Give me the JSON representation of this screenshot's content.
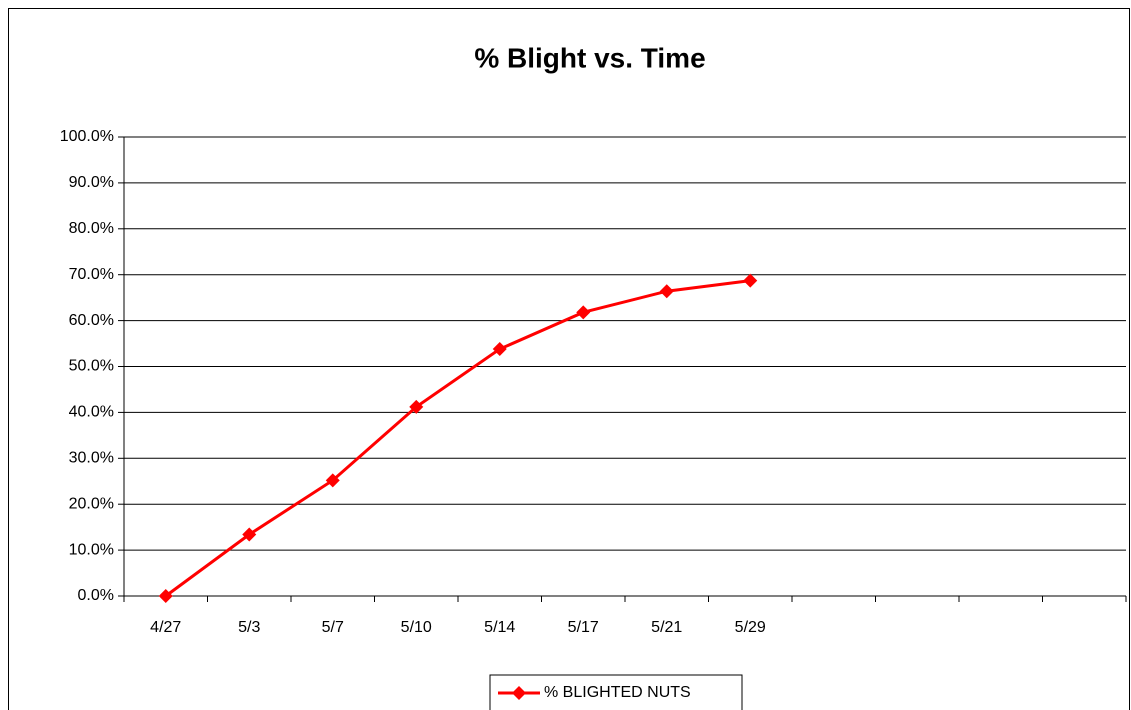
{
  "chart_data": {
    "type": "line",
    "title": "% Blight vs. Time",
    "categories": [
      "4/27",
      "5/3",
      "5/7",
      "5/10",
      "5/14",
      "5/17",
      "5/21",
      "5/29",
      null,
      null,
      null,
      null
    ],
    "series": [
      {
        "name": "% BLIGHTED NUTS",
        "color": "#ff0000",
        "values": [
          0,
          13.4,
          25.2,
          41.2,
          53.8,
          61.8,
          66.4,
          68.7,
          null,
          null,
          null,
          null
        ]
      }
    ],
    "ylim": [
      0,
      100
    ],
    "yticks": [
      {
        "value": 0,
        "label": "0.0%"
      },
      {
        "value": 10,
        "label": "10.0%"
      },
      {
        "value": 20,
        "label": "20.0%"
      },
      {
        "value": 30,
        "label": "30.0%"
      },
      {
        "value": 40,
        "label": "40.0%"
      },
      {
        "value": 50,
        "label": "50.0%"
      },
      {
        "value": 60,
        "label": "60.0%"
      },
      {
        "value": 70,
        "label": "70.0%"
      },
      {
        "value": 80,
        "label": "80.0%"
      },
      {
        "value": 90,
        "label": "90.0%"
      },
      {
        "value": 100,
        "label": "100.0%"
      }
    ],
    "grid": true,
    "legend": "bottom"
  }
}
